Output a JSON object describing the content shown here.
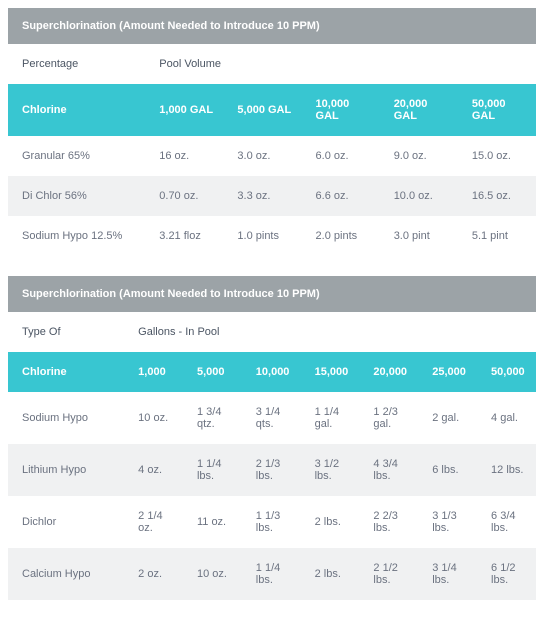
{
  "colors": {
    "title_bg": "#9ca3a7",
    "title_fg": "#ffffff",
    "cyan_bg": "#38c6d1",
    "cyan_fg": "#ffffff",
    "row_alt_bg": "#f0f1f2",
    "text": "#6b7280",
    "heading_text": "#4b5563"
  },
  "table1": {
    "title": "Superchlorination (Amount Needed to Introduce 10 PPM)",
    "sub_left": "Percentage",
    "sub_right": "Pool Volume",
    "header_label": "Chlorine",
    "cols": [
      "1,000 GAL",
      "5,000 GAL",
      "10,000 GAL",
      "20,000 GAL",
      "50,000 GAL"
    ],
    "rows": [
      {
        "label": "Granular 65%",
        "vals": [
          "16 oz.",
          "3.0 oz.",
          "6.0 oz.",
          "9.0 oz.",
          "15.0 oz."
        ]
      },
      {
        "label": "Di Chlor 56%",
        "vals": [
          "0.70 oz.",
          "3.3 oz.",
          "6.6 oz.",
          "10.0 oz.",
          "16.5 oz."
        ]
      },
      {
        "label": "Sodium Hypo 12.5%",
        "vals": [
          "3.21 floz",
          "1.0 pints",
          "2.0 pints",
          "3.0 pint",
          "5.1 pint"
        ]
      }
    ]
  },
  "table2": {
    "title": "Superchlorination (Amount Needed to Introduce 10 PPM)",
    "sub_left": "Type Of",
    "sub_right": "Gallons - In Pool",
    "header_label": "Chlorine",
    "cols": [
      "1,000",
      "5,000",
      "10,000",
      "15,000",
      "20,000",
      "25,000",
      "50,000"
    ],
    "rows": [
      {
        "label": "Sodium Hypo",
        "vals": [
          "10 oz.",
          "1 3/4 qtz.",
          "3 1/4 qts.",
          "1 1/4 gal.",
          "1 2/3 gal.",
          "2 gal.",
          "4 gal."
        ]
      },
      {
        "label": "Lithium Hypo",
        "vals": [
          "4 oz.",
          "1 1/4 lbs.",
          "2 1/3 lbs.",
          "3 1/2 lbs.",
          "4 3/4 lbs.",
          "6 lbs.",
          "12 lbs."
        ]
      },
      {
        "label": "Dichlor",
        "vals": [
          "2 1/4 oz.",
          "11 oz.",
          "1 1/3 lbs.",
          "2 lbs.",
          "2 2/3 lbs.",
          "3 1/3 lbs.",
          "6 3/4 lbs."
        ]
      },
      {
        "label": "Calcium Hypo",
        "vals": [
          "2 oz.",
          "10 oz.",
          "1 1/4 lbs.",
          "2 lbs.",
          "2 1/2 lbs.",
          "3 1/4 lbs.",
          "6 1/2 lbs."
        ]
      }
    ]
  }
}
